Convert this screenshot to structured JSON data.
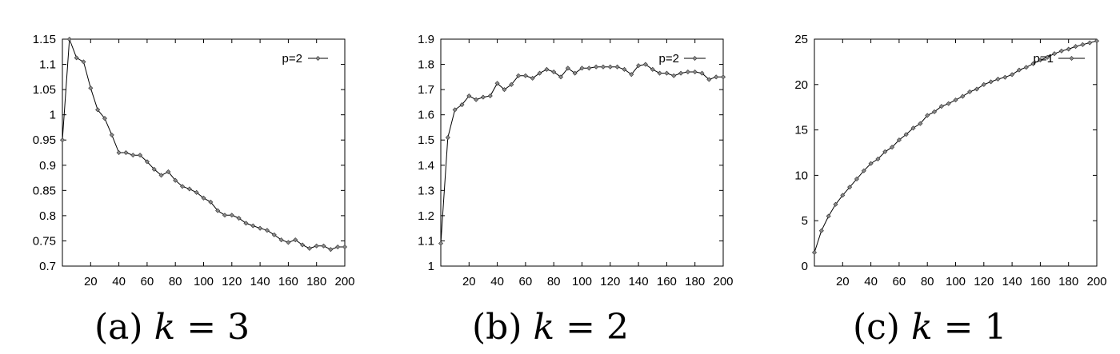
{
  "chart_data": [
    {
      "type": "line",
      "caption": "(a) k = 3",
      "caption_prefix": "(a)",
      "caption_var": "k",
      "caption_rest": "= 3",
      "xlim": [
        0,
        200
      ],
      "ylim": [
        0.7,
        1.15
      ],
      "x_ticks": [
        20,
        40,
        60,
        80,
        100,
        120,
        140,
        160,
        180,
        200
      ],
      "x_tick_labels": [
        "20",
        "40",
        "60",
        "80",
        "100",
        "120",
        "140",
        "160",
        "180",
        "200"
      ],
      "y_ticks": [
        0.7,
        0.75,
        0.8,
        0.85,
        0.9,
        0.95,
        1,
        1.05,
        1.1,
        1.15
      ],
      "y_tick_labels": [
        "0.7",
        "0.75",
        "0.8",
        "0.85",
        "0.9",
        "0.95",
        "1",
        "1.05",
        "1.1",
        "1.15"
      ],
      "grid": false,
      "legend_position": "top-right",
      "series": [
        {
          "name": "p=2",
          "x": [
            0,
            5,
            10,
            15,
            20,
            25,
            30,
            35,
            40,
            45,
            50,
            55,
            60,
            65,
            70,
            75,
            80,
            85,
            90,
            95,
            100,
            105,
            110,
            115,
            120,
            125,
            130,
            135,
            140,
            145,
            150,
            155,
            160,
            165,
            170,
            175,
            180,
            185,
            190,
            195,
            200
          ],
          "values": [
            0.95,
            1.15,
            1.113,
            1.105,
            1.053,
            1.01,
            0.993,
            0.96,
            0.925,
            0.925,
            0.92,
            0.92,
            0.907,
            0.892,
            0.88,
            0.887,
            0.87,
            0.858,
            0.853,
            0.846,
            0.835,
            0.827,
            0.81,
            0.801,
            0.801,
            0.795,
            0.785,
            0.78,
            0.775,
            0.771,
            0.762,
            0.752,
            0.747,
            0.752,
            0.742,
            0.735,
            0.74,
            0.74,
            0.733,
            0.738,
            0.738
          ]
        }
      ]
    },
    {
      "type": "line",
      "caption": "(b) k = 2",
      "caption_prefix": "(b)",
      "caption_var": "k",
      "caption_rest": "= 2",
      "xlim": [
        0,
        200
      ],
      "ylim": [
        1,
        1.9
      ],
      "x_ticks": [
        20,
        40,
        60,
        80,
        100,
        120,
        140,
        160,
        180,
        200
      ],
      "x_tick_labels": [
        "20",
        "40",
        "60",
        "80",
        "100",
        "120",
        "140",
        "160",
        "180",
        "200"
      ],
      "y_ticks": [
        1,
        1.1,
        1.2,
        1.3,
        1.4,
        1.5,
        1.6,
        1.7,
        1.8,
        1.9
      ],
      "y_tick_labels": [
        "1",
        "1.1",
        "1.2",
        "1.3",
        "1.4",
        "1.5",
        "1.6",
        "1.7",
        "1.8",
        "1.9"
      ],
      "grid": false,
      "legend_position": "top-right",
      "series": [
        {
          "name": "p=2",
          "x": [
            0,
            5,
            10,
            15,
            20,
            25,
            30,
            35,
            40,
            45,
            50,
            55,
            60,
            65,
            70,
            75,
            80,
            85,
            90,
            95,
            100,
            105,
            110,
            115,
            120,
            125,
            130,
            135,
            140,
            145,
            150,
            155,
            160,
            165,
            170,
            175,
            180,
            185,
            190,
            195,
            200
          ],
          "values": [
            1.09,
            1.51,
            1.62,
            1.64,
            1.675,
            1.66,
            1.67,
            1.675,
            1.725,
            1.7,
            1.72,
            1.755,
            1.755,
            1.745,
            1.765,
            1.78,
            1.77,
            1.75,
            1.785,
            1.765,
            1.785,
            1.785,
            1.79,
            1.79,
            1.79,
            1.79,
            1.78,
            1.76,
            1.795,
            1.8,
            1.78,
            1.765,
            1.765,
            1.755,
            1.765,
            1.77,
            1.77,
            1.765,
            1.74,
            1.75,
            1.75
          ]
        }
      ]
    },
    {
      "type": "line",
      "caption": "(c) k = 1",
      "caption_prefix": "(c)",
      "caption_var": "k",
      "caption_rest": "= 1",
      "xlim": [
        0,
        200
      ],
      "ylim": [
        0,
        25
      ],
      "x_ticks": [
        20,
        40,
        60,
        80,
        100,
        120,
        140,
        160,
        180,
        200
      ],
      "x_tick_labels": [
        "20",
        "40",
        "60",
        "80",
        "100",
        "120",
        "140",
        "160",
        "180",
        "200"
      ],
      "y_ticks": [
        0,
        5,
        10,
        15,
        20,
        25
      ],
      "y_tick_labels": [
        "0",
        "5",
        "10",
        "15",
        "20",
        "25"
      ],
      "grid": false,
      "legend_position": "top-right",
      "series": [
        {
          "name": "p=1",
          "x": [
            0,
            5,
            10,
            15,
            20,
            25,
            30,
            35,
            40,
            45,
            50,
            55,
            60,
            65,
            70,
            75,
            80,
            85,
            90,
            95,
            100,
            105,
            110,
            115,
            120,
            125,
            130,
            135,
            140,
            145,
            150,
            155,
            160,
            165,
            170,
            175,
            180,
            185,
            190,
            195,
            200
          ],
          "values": [
            1.5,
            3.9,
            5.5,
            6.8,
            7.8,
            8.7,
            9.6,
            10.5,
            11.3,
            11.8,
            12.6,
            13.1,
            13.9,
            14.5,
            15.2,
            15.7,
            16.6,
            17.0,
            17.6,
            17.9,
            18.3,
            18.7,
            19.2,
            19.5,
            20.0,
            20.3,
            20.6,
            20.8,
            21.1,
            21.6,
            21.9,
            22.3,
            22.7,
            23.0,
            23.4,
            23.7,
            23.9,
            24.2,
            24.4,
            24.6,
            24.8
          ]
        }
      ]
    }
  ]
}
